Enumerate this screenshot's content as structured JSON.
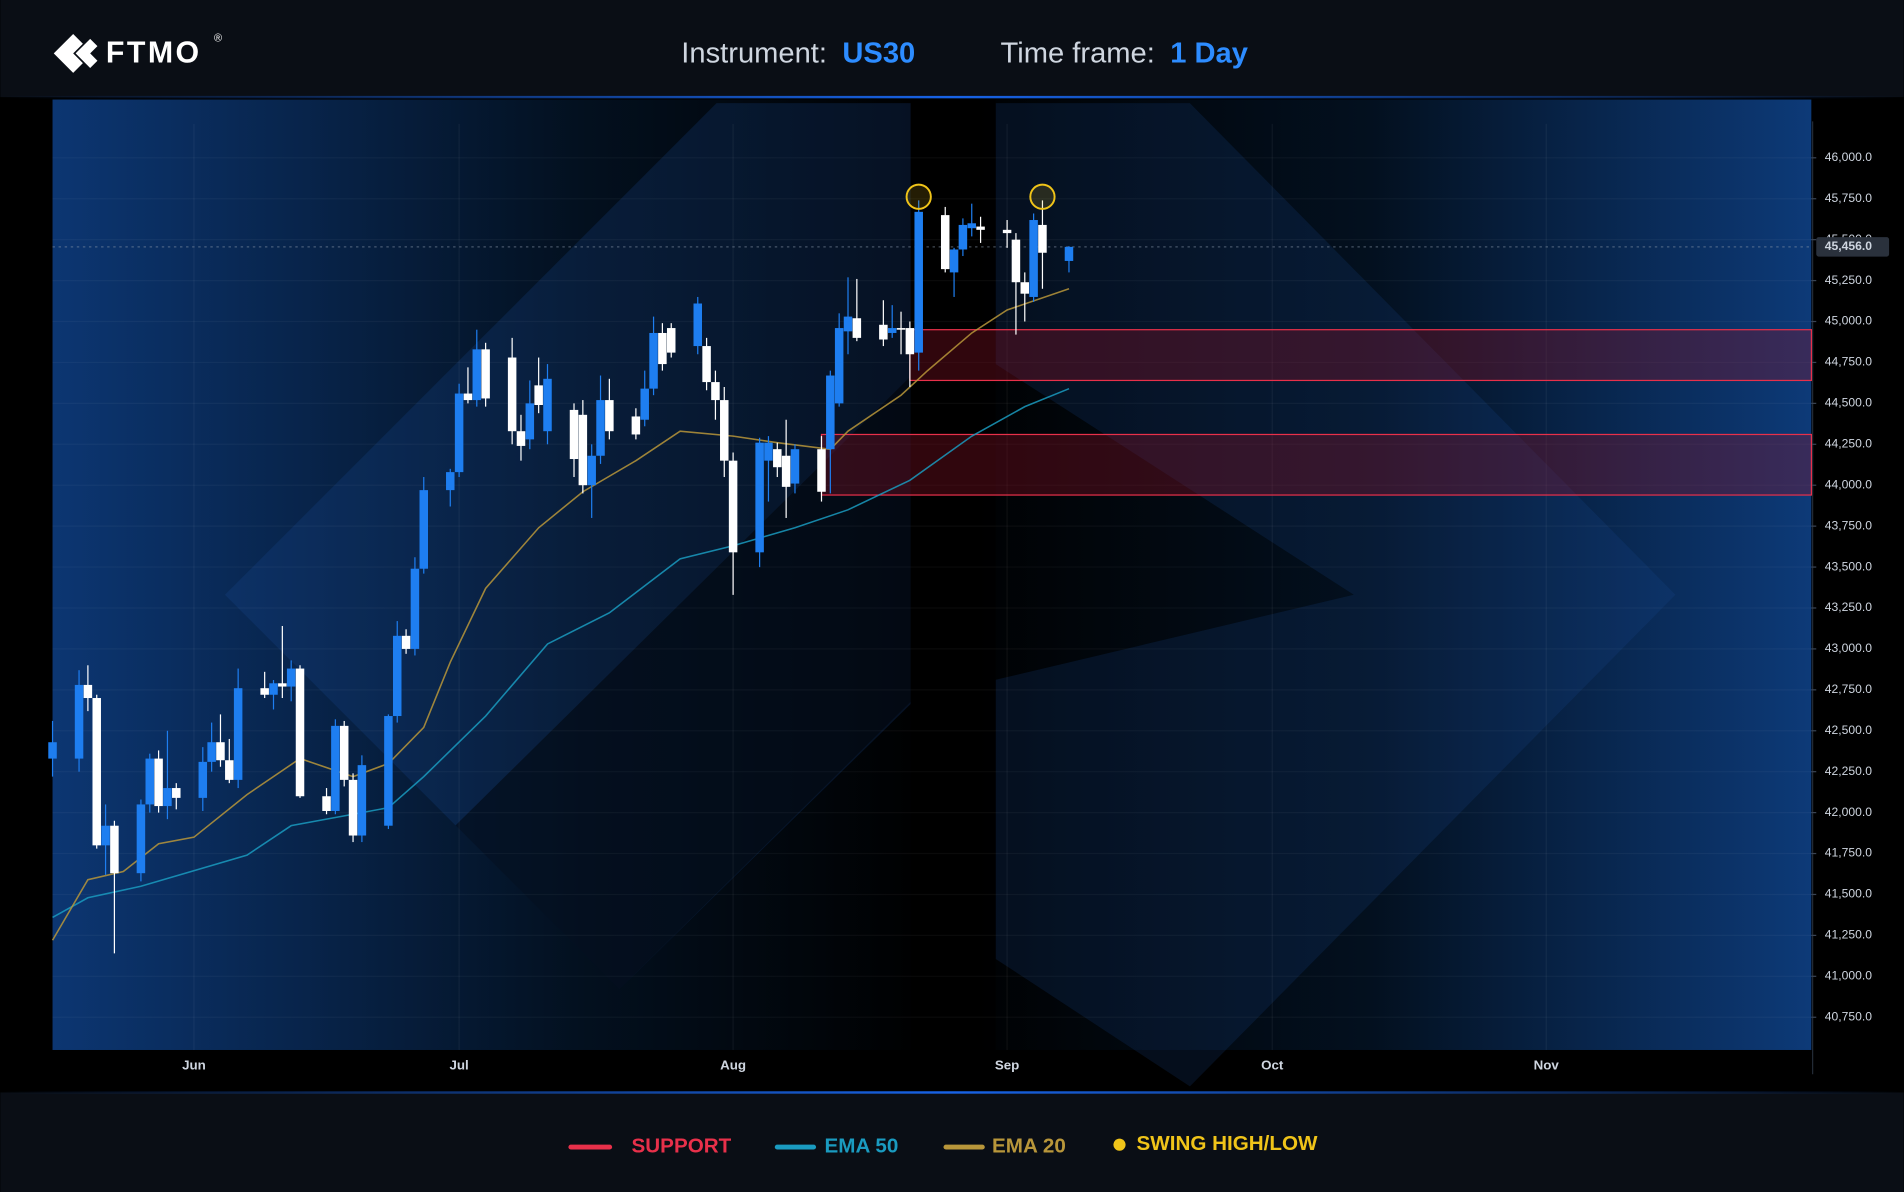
{
  "header": {
    "logo": "FTMO",
    "logo_mark": "®",
    "instrument_label": "Instrument:",
    "instrument": "US30",
    "timeframe_label": "Time frame:",
    "timeframe": "1 Day"
  },
  "chart_data": {
    "type": "candlestick",
    "x": [
      -16,
      -13,
      -12,
      -11,
      -10,
      -9,
      -6,
      -5,
      -4,
      -3,
      -2,
      1,
      2,
      3,
      4,
      5,
      8,
      9,
      10,
      11,
      12,
      15,
      16,
      17,
      18,
      19,
      22,
      23,
      24,
      25,
      26,
      29,
      30,
      31,
      32,
      33,
      36,
      37,
      38,
      39,
      40,
      43,
      44,
      45,
      46,
      47,
      50,
      51,
      52,
      53,
      54,
      57,
      58,
      59,
      60,
      61,
      64,
      65,
      66,
      67,
      68,
      71,
      72,
      73,
      74,
      75,
      78,
      79,
      80,
      81,
      82,
      85,
      86,
      87,
      88,
      89,
      92,
      93,
      94,
      95,
      96,
      99
    ],
    "open": [
      42330,
      42330,
      42780,
      42700,
      41800,
      41920,
      41630,
      42050,
      42330,
      42040,
      42150,
      42090,
      42310,
      42430,
      42320,
      42200,
      42760,
      42720,
      42790,
      42770,
      42880,
      42100,
      42010,
      42530,
      42200,
      41860,
      41920,
      42590,
      43080,
      43000,
      43490,
      43970,
      44080,
      44560,
      44520,
      44830,
      44780,
      44330,
      44280,
      44610,
      44330,
      44460,
      44430,
      44000,
      44180,
      44520,
      44420,
      44400,
      44590,
      44930,
      44960,
      44850,
      44850,
      44630,
      44520,
      44150,
      43590,
      44150,
      44220,
      44180,
      44010,
      44220,
      44220,
      44500,
      44940,
      45020,
      44980,
      44930,
      44960,
      44960,
      44810,
      45650,
      45300,
      45440,
      45570,
      45580,
      45560,
      45500,
      45240,
      45150,
      45590,
      45370
    ],
    "high": [
      42560,
      42870,
      42900,
      42720,
      42050,
      41950,
      42080,
      42360,
      42380,
      42500,
      42180,
      42400,
      42550,
      42600,
      42450,
      42880,
      42860,
      42810,
      43140,
      42930,
      42900,
      42150,
      42570,
      42560,
      42240,
      42350,
      42600,
      43170,
      43120,
      43560,
      44050,
      44100,
      44620,
      44720,
      44950,
      44870,
      44900,
      44430,
      44640,
      44780,
      44740,
      44500,
      44520,
      44250,
      44670,
      44650,
      44470,
      44700,
      45030,
      44990,
      44990,
      45150,
      44900,
      44700,
      44600,
      44200,
      44290,
      44300,
      44260,
      44400,
      44250,
      44300,
      44700,
      45050,
      45270,
      45260,
      45130,
      45100,
      45060,
      45000,
      45740,
      45700,
      45450,
      45630,
      45720,
      45640,
      45620,
      45540,
      45300,
      45660,
      45740,
      45460
    ],
    "low": [
      42220,
      42250,
      42620,
      41780,
      41620,
      41140,
      41580,
      42000,
      42000,
      41960,
      42020,
      42010,
      42250,
      42280,
      42180,
      42150,
      42700,
      42630,
      42700,
      42680,
      42090,
      41990,
      41990,
      42160,
      41820,
      41820,
      41900,
      42550,
      42970,
      42960,
      43460,
      43870,
      44050,
      44500,
      44480,
      44480,
      44250,
      44150,
      44220,
      44440,
      44250,
      44050,
      43950,
      43800,
      44130,
      44280,
      44280,
      44360,
      44550,
      44700,
      44780,
      44800,
      44580,
      44400,
      44050,
      43330,
      43500,
      43900,
      44050,
      43800,
      43950,
      43900,
      43950,
      44480,
      44800,
      44880,
      44850,
      44900,
      44800,
      44600,
      44700,
      45300,
      45150,
      45400,
      45520,
      45480,
      45450,
      44920,
      45000,
      45120,
      45200,
      45300
    ],
    "close": [
      42430,
      42780,
      42700,
      41800,
      41920,
      41630,
      42050,
      42330,
      42040,
      42150,
      42090,
      42310,
      42430,
      42320,
      42200,
      42760,
      42720,
      42790,
      42770,
      42880,
      42100,
      42010,
      42530,
      42200,
      41860,
      42290,
      42590,
      43080,
      43000,
      43490,
      43970,
      44080,
      44560,
      44520,
      44830,
      44530,
      44330,
      44240,
      44500,
      44490,
      44650,
      44160,
      44000,
      44180,
      44520,
      44330,
      44310,
      44590,
      44930,
      44740,
      44810,
      45110,
      44630,
      44520,
      44150,
      43590,
      44260,
      44260,
      44110,
      43990,
      44220,
      43960,
      44670,
      44960,
      45030,
      44900,
      44890,
      44960,
      44950,
      44800,
      45670,
      45320,
      45440,
      45590,
      45600,
      45560,
      45540,
      45240,
      45170,
      45620,
      45420,
      45456
    ],
    "up_color": "#1e7ef0",
    "down_color": "#ffffff",
    "xlim": [
      -16,
      183
    ],
    "ylim": [
      40550,
      46356
    ],
    "xticks": [
      {
        "value": 0,
        "label": "Jun"
      },
      {
        "value": 30,
        "label": "Jul"
      },
      {
        "value": 61,
        "label": "Aug"
      },
      {
        "value": 92,
        "label": "Sep"
      },
      {
        "value": 122,
        "label": "Oct"
      },
      {
        "value": 153,
        "label": "Nov"
      }
    ],
    "yticks": [
      {
        "value": 40750,
        "label": "40,750.0"
      },
      {
        "value": 41000,
        "label": "41,000.0"
      },
      {
        "value": 41250,
        "label": "41,250.0"
      },
      {
        "value": 41500,
        "label": "41,500.0"
      },
      {
        "value": 41750,
        "label": "41,750.0"
      },
      {
        "value": 42000,
        "label": "42,000.0"
      },
      {
        "value": 42250,
        "label": "42,250.0"
      },
      {
        "value": 42500,
        "label": "42,500.0"
      },
      {
        "value": 42750,
        "label": "42,750.0"
      },
      {
        "value": 43000,
        "label": "43,000.0"
      },
      {
        "value": 43250,
        "label": "43,250.0"
      },
      {
        "value": 43500,
        "label": "43,500.0"
      },
      {
        "value": 43750,
        "label": "43,750.0"
      },
      {
        "value": 44000,
        "label": "44,000.0"
      },
      {
        "value": 44250,
        "label": "44,250.0"
      },
      {
        "value": 44500,
        "label": "44,500.0"
      },
      {
        "value": 44750,
        "label": "44,750.0"
      },
      {
        "value": 45000,
        "label": "45,000.0"
      },
      {
        "value": 45250,
        "label": "45,250.0"
      },
      {
        "value": 45500,
        "label": "45,500.0"
      },
      {
        "value": 45750,
        "label": "45,750.0"
      },
      {
        "value": 46000,
        "label": "46,000.0"
      }
    ],
    "last_price": {
      "value": 45456,
      "label": "45,456.0"
    },
    "lines": [
      {
        "name": "EMA 50",
        "color": "#1a9bc0",
        "x": [
          -16,
          -12,
          -6,
          6,
          11,
          18,
          22,
          26,
          33,
          40,
          47,
          55,
          61,
          68,
          74,
          81,
          88,
          94,
          99
        ],
        "values": [
          41360,
          41480,
          41550,
          41740,
          41920,
          41990,
          42030,
          42220,
          42590,
          43030,
          43220,
          43550,
          43630,
          43740,
          43850,
          44030,
          44300,
          44480,
          44590
        ]
      },
      {
        "name": "EMA 20",
        "color": "#b8963a",
        "x": [
          -16,
          -12,
          -8,
          -4,
          0,
          6,
          12,
          18,
          22,
          26,
          29,
          33,
          39,
          44,
          50,
          55,
          61,
          66,
          72,
          74,
          80,
          83,
          88,
          92,
          99
        ],
        "values": [
          41220,
          41590,
          41640,
          41810,
          41850,
          42110,
          42330,
          42220,
          42300,
          42520,
          42920,
          43370,
          43740,
          43960,
          44150,
          44330,
          44300,
          44260,
          44220,
          44330,
          44550,
          44700,
          44930,
          45070,
          45200
        ]
      }
    ],
    "support": {
      "name": "SUPPORT",
      "color": "#e8304a",
      "zones": [
        {
          "x0": 81,
          "low": 44640,
          "high": 44950
        },
        {
          "x0": 71,
          "low": 43940,
          "high": 44310
        }
      ]
    },
    "swing": {
      "name": "SWING HIGH/LOW",
      "color": "#f0c419",
      "x": [
        82,
        96
      ],
      "values": [
        45740,
        45740
      ]
    }
  }
}
